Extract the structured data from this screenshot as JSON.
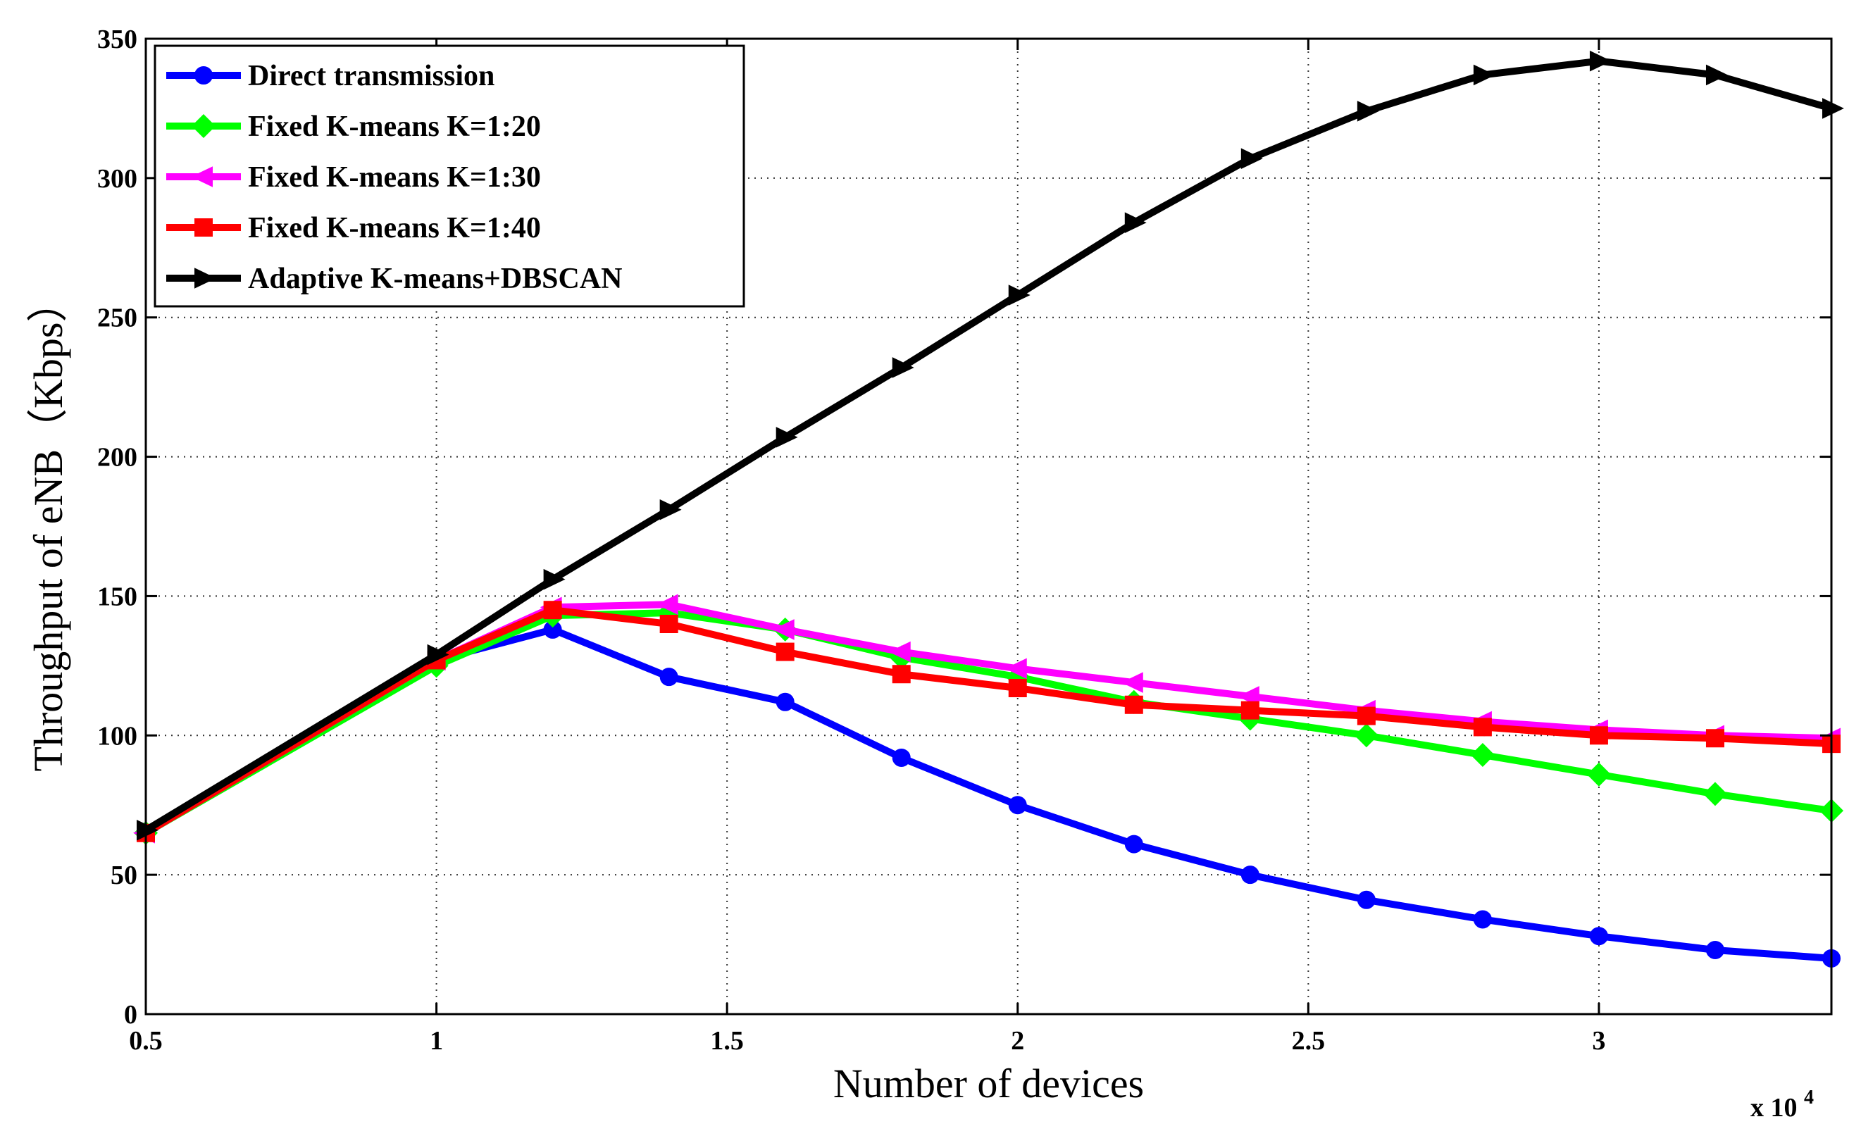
{
  "chart_data": {
    "type": "line",
    "title": "",
    "xlabel": "Number of devices",
    "ylabel": "Throughput of eNB（Kbps）",
    "x_multiplier_label": "x 10",
    "x_multiplier_exponent": "4",
    "xlim": [
      0.5,
      3.4
    ],
    "ylim": [
      0,
      350
    ],
    "xticks": [
      0.5,
      1,
      1.5,
      2,
      2.5,
      3
    ],
    "xtick_labels": [
      "0.5",
      "1",
      "1.5",
      "2",
      "2.5",
      "3"
    ],
    "yticks": [
      0,
      50,
      100,
      150,
      200,
      250,
      300,
      350
    ],
    "ytick_labels": [
      "0",
      "50",
      "100",
      "150",
      "200",
      "250",
      "300",
      "350"
    ],
    "grid": true,
    "legend_position": "top-left",
    "x": [
      0.5,
      1.0,
      1.2,
      1.4,
      1.6,
      1.8,
      2.0,
      2.2,
      2.4,
      2.6,
      2.8,
      3.0,
      3.2,
      3.4
    ],
    "series": [
      {
        "name": "Direct transmission",
        "color": "#0000ff",
        "marker": "circle",
        "values": [
          65,
          127,
          138,
          121,
          112,
          92,
          75,
          61,
          50,
          41,
          34,
          28,
          23,
          20
        ]
      },
      {
        "name": "Fixed K-means K=1:20",
        "color": "#00ff00",
        "marker": "diamond",
        "values": [
          65,
          125,
          143,
          144,
          138,
          128,
          121,
          112,
          106,
          100,
          93,
          86,
          79,
          73
        ]
      },
      {
        "name": "Fixed K-means K=1:30",
        "color": "#ff00ff",
        "marker": "triangle-left",
        "values": [
          65,
          127,
          146,
          147,
          138,
          130,
          124,
          119,
          114,
          109,
          105,
          102,
          100,
          99
        ]
      },
      {
        "name": "Fixed K-means K=1:40",
        "color": "#ff0000",
        "marker": "square",
        "values": [
          65,
          127,
          145,
          140,
          130,
          122,
          117,
          111,
          109,
          107,
          103,
          100,
          99,
          97
        ]
      },
      {
        "name": "Adaptive K-means+DBSCAN",
        "color": "#000000",
        "marker": "triangle-right",
        "values": [
          66,
          129,
          156,
          181,
          207,
          232,
          258,
          284,
          307,
          324,
          337,
          342,
          337,
          325
        ]
      }
    ]
  }
}
